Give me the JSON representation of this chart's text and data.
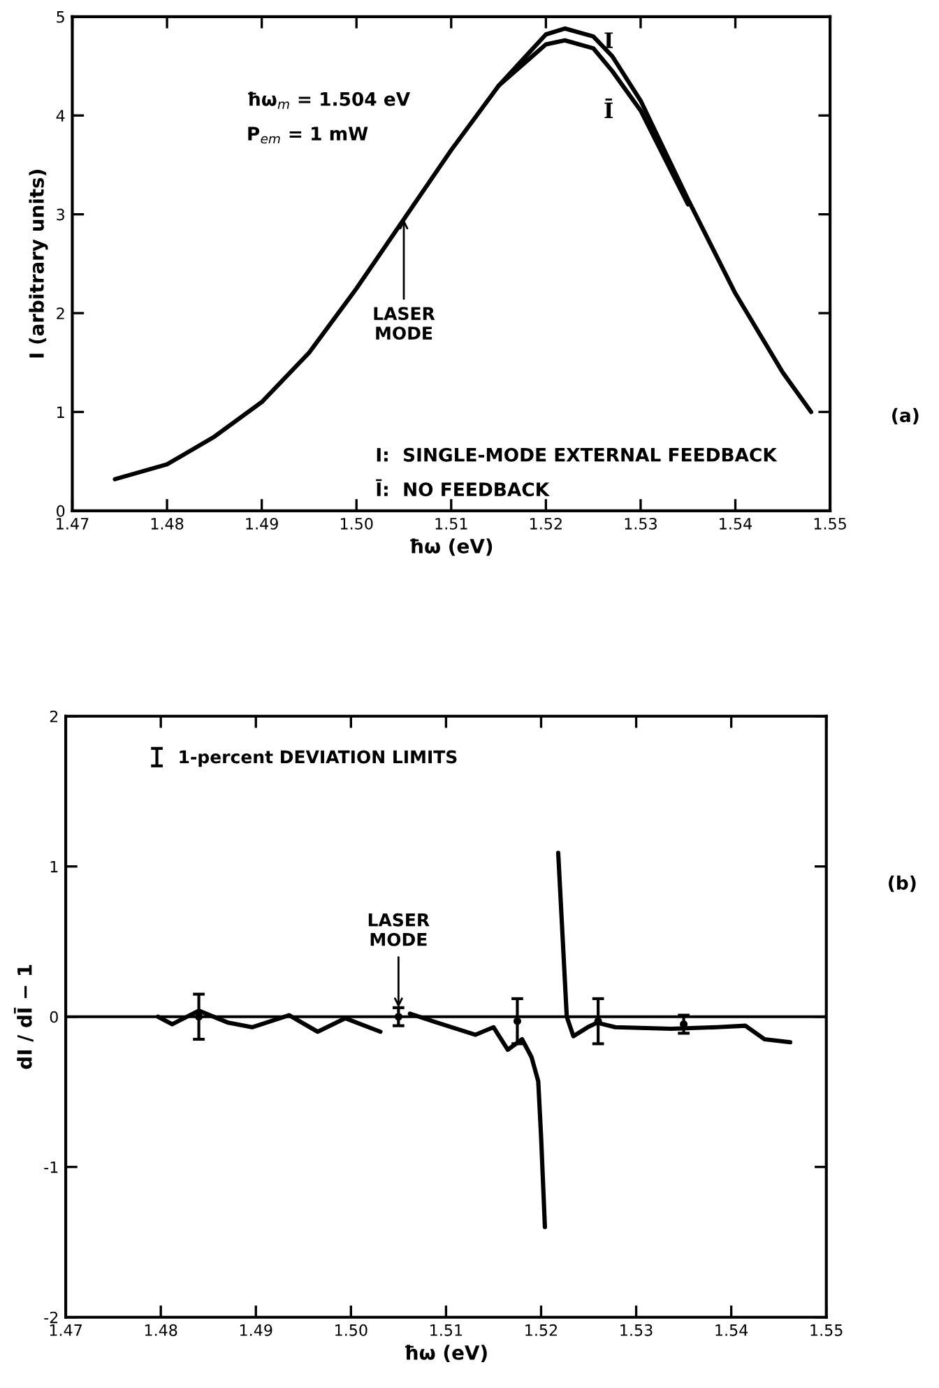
{
  "chart_data": [
    {
      "type": "line",
      "xlabel": "ħω (eV)",
      "ylabel": "I (arbitrary units)",
      "x": [
        1.4745,
        1.48,
        1.485,
        1.49,
        1.495,
        1.5,
        1.505,
        1.51,
        1.515,
        1.52,
        1.522,
        1.525,
        1.527,
        1.53,
        1.535,
        1.54,
        1.545,
        1.548
      ],
      "series": [
        {
          "name": "I",
          "color": "#000000",
          "values": [
            0.32,
            0.47,
            0.75,
            1.1,
            1.6,
            2.25,
            2.95,
            3.65,
            4.3,
            4.82,
            4.88,
            4.8,
            4.6,
            4.15,
            3.15,
            2.2,
            1.4,
            1.0
          ]
        },
        {
          "name": "Ī",
          "color": "#000000",
          "x": [
            1.515,
            1.52,
            1.522,
            1.525,
            1.527,
            1.53,
            1.535
          ],
          "values": [
            4.3,
            4.72,
            4.76,
            4.68,
            4.45,
            4.05,
            3.1
          ]
        }
      ],
      "xlim": [
        1.47,
        1.55
      ],
      "xticks": [
        1.47,
        1.48,
        1.49,
        {
          "value": 1.5,
          "label": "1.50"
        },
        1.51,
        1.52,
        1.53,
        1.54,
        1.55
      ],
      "ylim": [
        0,
        5
      ],
      "yticks": [
        0,
        1,
        2,
        3,
        4,
        5
      ],
      "grid": false,
      "legend": false,
      "marker": "none",
      "line_style": "solid",
      "annotations": [
        "ħω$_{m}$ = 1.504 eV",
        "P$_{em}$ = 1 mW",
        {
          "text": "LASER\nMODE",
          "x": 1.505,
          "y": 2.95
        },
        "I:  SINGLE-MODE EXTERNAL FEEDBACK",
        "Ī:  NO FEEDBACK",
        "(a)"
      ]
    },
    {
      "type": "line",
      "xlabel": "ħω (eV)",
      "ylabel": "dI / dĪ − 1",
      "series": [
        {
          "color": "#000000",
          "x": [
            1.4797,
            1.4812,
            1.484,
            1.4871,
            1.4896,
            1.4935,
            1.4965,
            1.4994,
            1.5031,
            1.5045,
            1.5062,
            1.5091,
            1.5131,
            1.515,
            1.5165,
            1.518,
            1.519,
            1.5197,
            1.52,
            1.5204,
            1.521,
            1.5218,
            1.5227,
            1.5234,
            1.5249,
            1.5259,
            1.5278,
            1.5337,
            1.5385,
            1.5415,
            1.5435,
            1.5462
          ],
          "values": [
            0.0,
            -0.05,
            0.04,
            -0.04,
            -0.07,
            0.01,
            -0.1,
            -0.01,
            -0.1,
            null,
            0.02,
            -0.04,
            -0.12,
            -0.07,
            -0.22,
            -0.15,
            -0.27,
            -0.43,
            -0.8,
            -1.4,
            null,
            1.09,
            0.0,
            -0.13,
            -0.07,
            -0.04,
            -0.07,
            -0.08,
            -0.07,
            -0.06,
            -0.15,
            -0.17
          ]
        },
        {
          "name": "1-percent DEVIATION LIMITS",
          "type": "scatter",
          "marker": "circle",
          "color": "#000000",
          "x": [
            1.484,
            1.505,
            1.5175,
            1.526,
            1.535
          ],
          "values": [
            0.0,
            0.0,
            -0.03,
            -0.03,
            -0.05
          ],
          "errors": [
            0.15,
            0.06,
            0.15,
            0.15,
            0.06
          ]
        }
      ],
      "xlim": [
        1.47,
        1.55
      ],
      "xticks": [
        1.47,
        1.48,
        1.49,
        {
          "value": 1.5,
          "label": "1.50"
        },
        1.51,
        1.52,
        1.53,
        1.54,
        1.55
      ],
      "ylim": [
        -2,
        2
      ],
      "yticks": [
        -2,
        -1,
        0,
        1,
        2
      ],
      "ref_lines": [
        {
          "axis": "y",
          "value": 0,
          "color": "#000000"
        }
      ],
      "grid": false,
      "legend": "top left",
      "marker": "none",
      "line_style": "solid",
      "annotations": [
        {
          "text": "LASER\nMODE",
          "x": 1.505,
          "y": 0.06
        },
        "(b)"
      ]
    }
  ]
}
